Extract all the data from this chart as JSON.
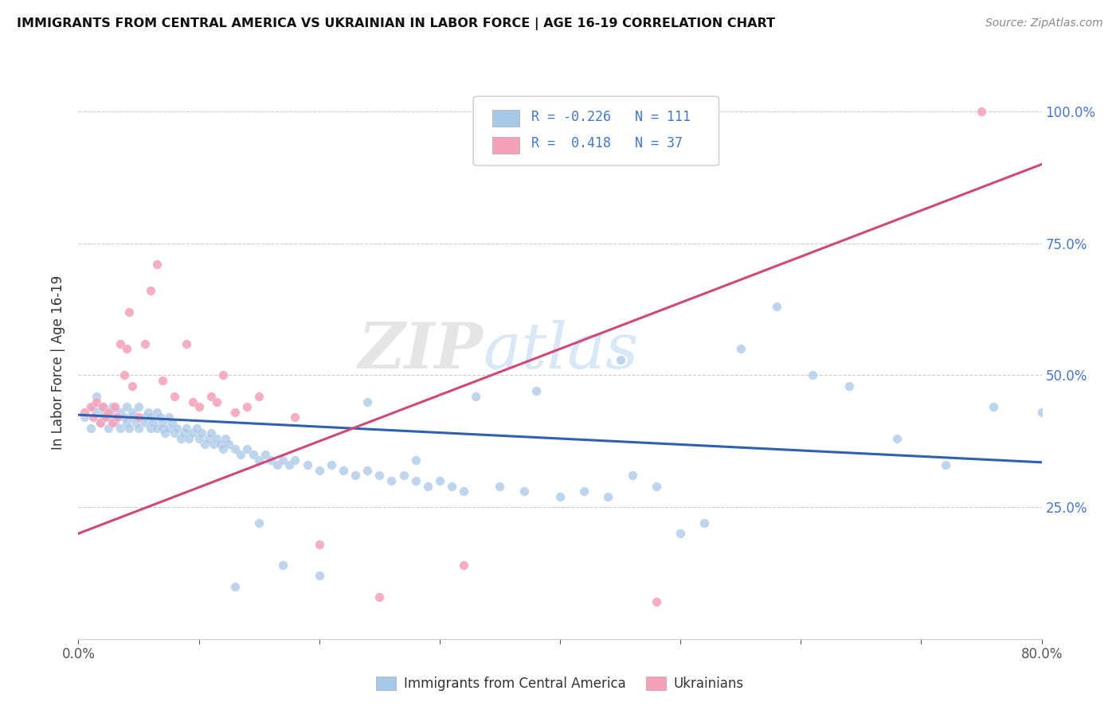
{
  "title": "IMMIGRANTS FROM CENTRAL AMERICA VS UKRAINIAN IN LABOR FORCE | AGE 16-19 CORRELATION CHART",
  "source": "Source: ZipAtlas.com",
  "ylabel": "In Labor Force | Age 16-19",
  "xlim": [
    0.0,
    0.8
  ],
  "ylim": [
    0.0,
    1.05
  ],
  "blue_color": "#a8c8e8",
  "pink_color": "#f4a0b8",
  "blue_line_color": "#3060b0",
  "pink_line_color": "#d04878",
  "legend_r_blue": "-0.226",
  "legend_n_blue": "111",
  "legend_r_pink": "0.418",
  "legend_n_pink": "37",
  "watermark": "ZIPatlas",
  "blue_scatter_x": [
    0.005,
    0.01,
    0.012,
    0.015,
    0.015,
    0.018,
    0.02,
    0.02,
    0.022,
    0.025,
    0.025,
    0.028,
    0.03,
    0.03,
    0.032,
    0.035,
    0.035,
    0.038,
    0.04,
    0.04,
    0.042,
    0.045,
    0.045,
    0.048,
    0.05,
    0.05,
    0.055,
    0.055,
    0.058,
    0.06,
    0.06,
    0.062,
    0.065,
    0.065,
    0.068,
    0.07,
    0.07,
    0.072,
    0.075,
    0.075,
    0.078,
    0.08,
    0.082,
    0.085,
    0.088,
    0.09,
    0.092,
    0.095,
    0.098,
    0.1,
    0.102,
    0.105,
    0.108,
    0.11,
    0.112,
    0.115,
    0.118,
    0.12,
    0.122,
    0.125,
    0.13,
    0.135,
    0.14,
    0.145,
    0.15,
    0.155,
    0.16,
    0.165,
    0.17,
    0.175,
    0.18,
    0.19,
    0.2,
    0.21,
    0.22,
    0.23,
    0.24,
    0.25,
    0.26,
    0.27,
    0.28,
    0.29,
    0.3,
    0.31,
    0.32,
    0.35,
    0.37,
    0.4,
    0.42,
    0.44,
    0.46,
    0.48,
    0.5,
    0.52,
    0.55,
    0.58,
    0.61,
    0.64,
    0.68,
    0.72,
    0.76,
    0.8,
    0.45,
    0.38,
    0.33,
    0.28,
    0.24,
    0.2,
    0.17,
    0.15,
    0.13
  ],
  "blue_scatter_y": [
    0.42,
    0.4,
    0.44,
    0.43,
    0.46,
    0.41,
    0.42,
    0.44,
    0.43,
    0.4,
    0.42,
    0.44,
    0.41,
    0.43,
    0.42,
    0.4,
    0.43,
    0.42,
    0.41,
    0.44,
    0.4,
    0.42,
    0.43,
    0.41,
    0.44,
    0.4,
    0.42,
    0.41,
    0.43,
    0.4,
    0.42,
    0.41,
    0.43,
    0.4,
    0.42,
    0.41,
    0.4,
    0.39,
    0.42,
    0.4,
    0.41,
    0.39,
    0.4,
    0.38,
    0.39,
    0.4,
    0.38,
    0.39,
    0.4,
    0.38,
    0.39,
    0.37,
    0.38,
    0.39,
    0.37,
    0.38,
    0.37,
    0.36,
    0.38,
    0.37,
    0.36,
    0.35,
    0.36,
    0.35,
    0.34,
    0.35,
    0.34,
    0.33,
    0.34,
    0.33,
    0.34,
    0.33,
    0.32,
    0.33,
    0.32,
    0.31,
    0.32,
    0.31,
    0.3,
    0.31,
    0.3,
    0.29,
    0.3,
    0.29,
    0.28,
    0.29,
    0.28,
    0.27,
    0.28,
    0.27,
    0.31,
    0.29,
    0.2,
    0.22,
    0.55,
    0.63,
    0.5,
    0.48,
    0.38,
    0.33,
    0.44,
    0.43,
    0.53,
    0.47,
    0.46,
    0.34,
    0.45,
    0.12,
    0.14,
    0.22,
    0.1
  ],
  "pink_scatter_x": [
    0.005,
    0.01,
    0.012,
    0.015,
    0.018,
    0.02,
    0.022,
    0.025,
    0.028,
    0.03,
    0.032,
    0.035,
    0.038,
    0.04,
    0.042,
    0.045,
    0.05,
    0.055,
    0.06,
    0.065,
    0.07,
    0.08,
    0.09,
    0.095,
    0.1,
    0.11,
    0.115,
    0.12,
    0.13,
    0.14,
    0.15,
    0.18,
    0.2,
    0.25,
    0.32,
    0.48,
    0.75
  ],
  "pink_scatter_y": [
    0.43,
    0.44,
    0.42,
    0.45,
    0.41,
    0.44,
    0.42,
    0.43,
    0.41,
    0.44,
    0.42,
    0.56,
    0.5,
    0.55,
    0.62,
    0.48,
    0.42,
    0.56,
    0.66,
    0.71,
    0.49,
    0.46,
    0.56,
    0.45,
    0.44,
    0.46,
    0.45,
    0.5,
    0.43,
    0.44,
    0.46,
    0.42,
    0.18,
    0.08,
    0.14,
    0.07,
    1.0
  ],
  "blue_trend_x": [
    0.0,
    0.8
  ],
  "blue_trend_y": [
    0.425,
    0.335
  ],
  "pink_trend_x": [
    0.0,
    0.8
  ],
  "pink_trend_y": [
    0.2,
    0.9
  ]
}
